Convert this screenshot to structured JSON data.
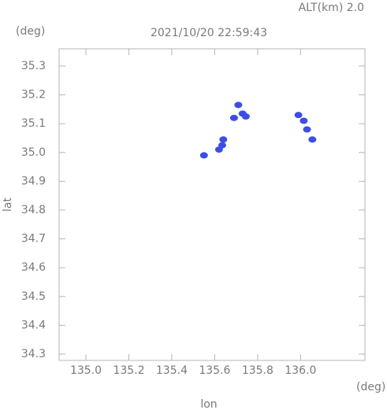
{
  "chart_data": {
    "type": "scatter",
    "header": "ALT(km) 2.0",
    "title": "2021/10/20 22:59:43",
    "y_unit": "(deg)",
    "x_unit": "(deg)",
    "xlabel": "lon",
    "ylabel": "lat",
    "x": [
      135.71,
      135.69,
      135.73,
      135.745,
      135.64,
      135.635,
      135.62,
      135.55,
      135.99,
      136.015,
      136.03,
      136.055
    ],
    "values": [
      35.165,
      35.12,
      35.135,
      35.125,
      35.045,
      35.025,
      35.01,
      34.99,
      35.13,
      35.11,
      35.08,
      35.045
    ],
    "color": "#3d4de8",
    "xlim": [
      134.875,
      136.3
    ],
    "ylim": [
      34.278,
      35.36
    ],
    "xticks": [
      {
        "value": 135,
        "label": "135.0"
      },
      135.2,
      135.4,
      135.6,
      135.8,
      {
        "value": 136,
        "label": "136.0"
      }
    ],
    "yticks": [
      34.3,
      34.4,
      34.5,
      34.6,
      34.7,
      34.8,
      34.9,
      {
        "value": 35,
        "label": "35.0"
      },
      35.1,
      35.2,
      35.3
    ]
  }
}
